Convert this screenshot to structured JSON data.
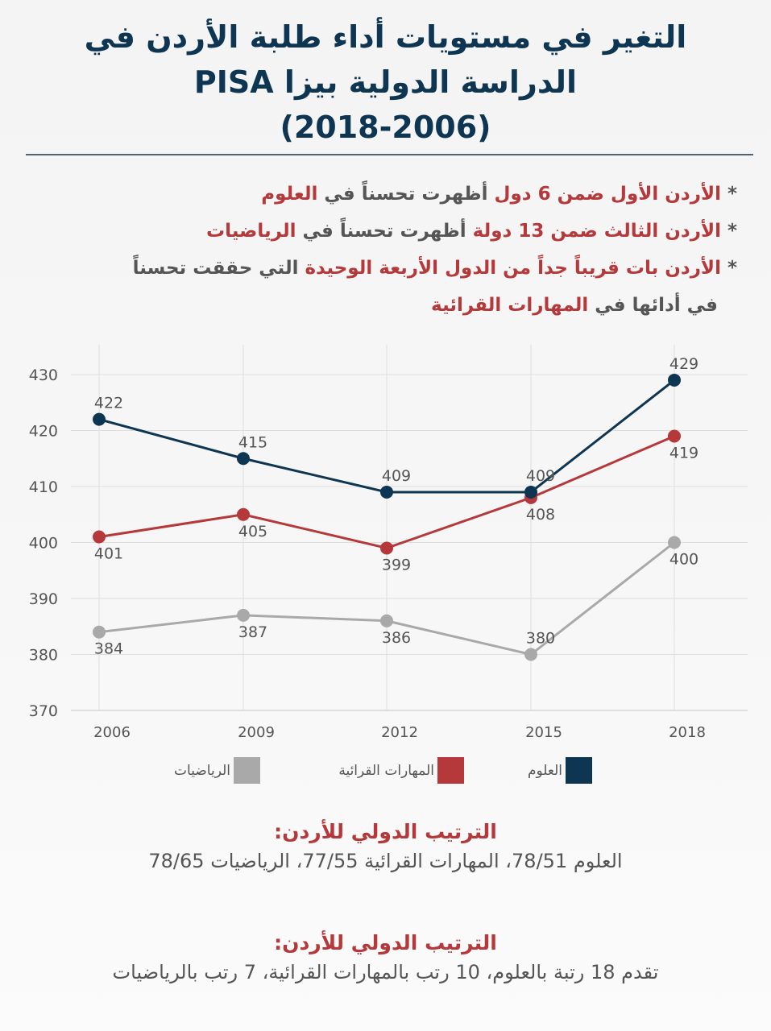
{
  "title": {
    "line1": "التغير في مستويات أداء طلبة الأردن في",
    "line2": "الدراسة الدولية بيزا PISA",
    "line3": "(2018-2006)"
  },
  "bullets": [
    {
      "parts": [
        {
          "text": "* ",
          "hl": false
        },
        {
          "text": "الأردن الأول ضمن 6 دول",
          "hl": true
        },
        {
          "text": " أظهرت تحسناً في ",
          "hl": false
        },
        {
          "text": "العلوم",
          "hl": true
        }
      ]
    },
    {
      "parts": [
        {
          "text": "* ",
          "hl": false
        },
        {
          "text": "الأردن الثالث ضمن 13 دولة",
          "hl": true
        },
        {
          "text": " أظهرت تحسناً في ",
          "hl": false
        },
        {
          "text": "الرياضيات",
          "hl": true
        }
      ]
    },
    {
      "parts": [
        {
          "text": "* ",
          "hl": false
        },
        {
          "text": "الأردن بات قريباً جداً من الدول الأربعة الوحيدة",
          "hl": true
        },
        {
          "text": " التي حققت تحسناً",
          "hl": false
        }
      ]
    },
    {
      "parts": [
        {
          "text": "في أدائها في ",
          "hl": false
        },
        {
          "text": "المهارات القرائية",
          "hl": true
        }
      ]
    }
  ],
  "colors": {
    "science": "#0e3551",
    "reading": "#b5393a",
    "math": "#a9a9a9",
    "grid": "#dedede",
    "text": "#555555"
  },
  "chart_data": {
    "type": "line",
    "title": "",
    "xlabel": "",
    "ylabel": "",
    "x": [
      "2006",
      "2009",
      "2012",
      "2015",
      "2018"
    ],
    "ylim": [
      370,
      430
    ],
    "yticks": [
      370,
      380,
      390,
      400,
      410,
      420,
      430
    ],
    "grid": true,
    "legend_position": "bottom",
    "series": [
      {
        "key": "science",
        "name": "العلوم",
        "values": [
          422,
          415,
          409,
          409,
          429
        ],
        "label_pos": [
          "above",
          "above",
          "above",
          "above",
          "above"
        ]
      },
      {
        "key": "reading",
        "name": "المهارات القرائية",
        "values": [
          401,
          405,
          399,
          408,
          419
        ],
        "label_pos": [
          "below",
          "below",
          "below",
          "below",
          "below"
        ]
      },
      {
        "key": "math",
        "name": "الرياضيات",
        "values": [
          384,
          387,
          386,
          380,
          400
        ],
        "label_pos": [
          "below",
          "below",
          "below",
          "above",
          "below"
        ]
      }
    ]
  },
  "ranking": {
    "heading1": "الترتيب الدولي للأردن:",
    "text1": "العلوم 78/51، المهارات القرائية 77/55،  الرياضيات 78/65",
    "heading2": "الترتيب الدولي للأردن:",
    "text2": "تقدم 18 رتبة بالعلوم، 10 رتب بالمهارات القرائية، 7 رتب بالرياضيات"
  }
}
